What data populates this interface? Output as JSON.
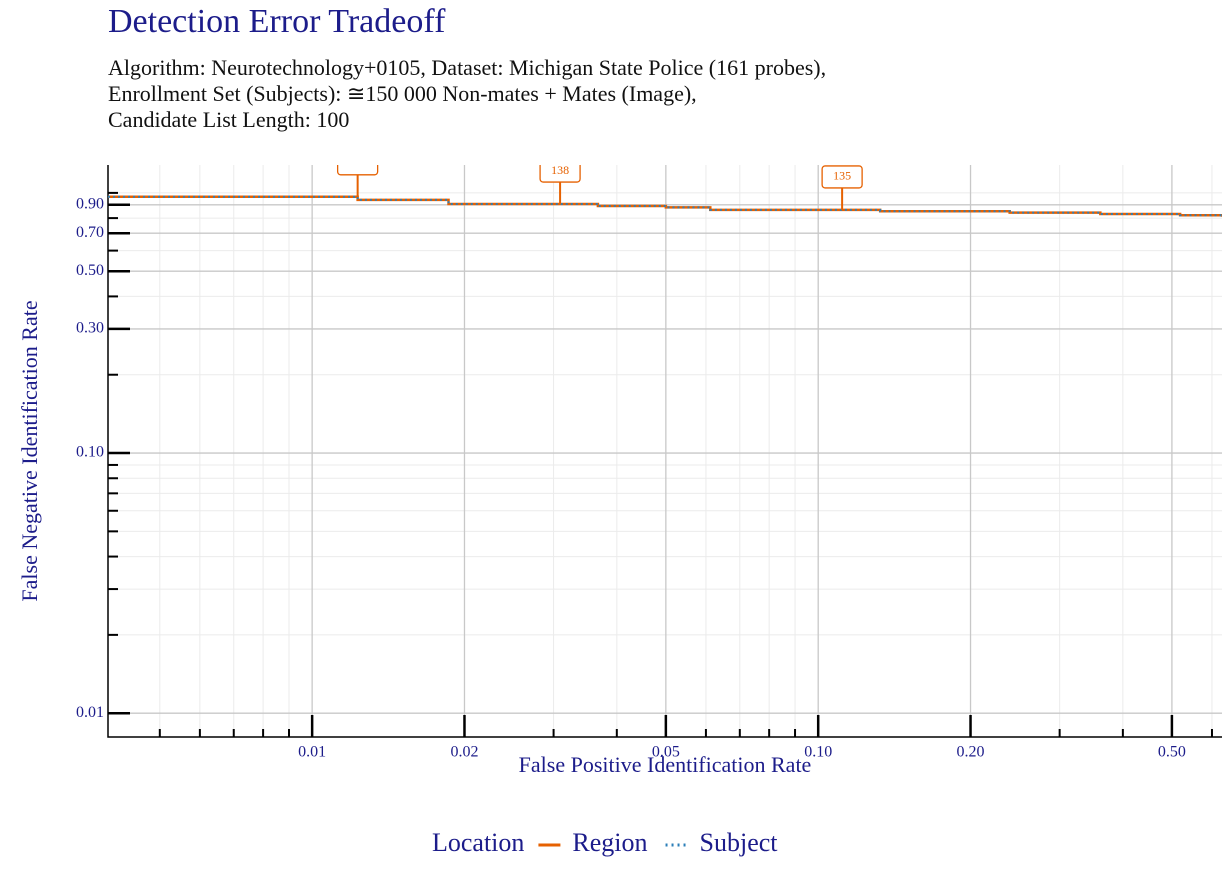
{
  "chart_data": {
    "type": "line",
    "title": "Detection Error Tradeoff",
    "subtitle": [
      "Algorithm: Neurotechnology+0105, Dataset: Michigan State Police (161 probes),",
      "Enrollment Set (Subjects): ≅150 000 Non-mates + Mates (Image),",
      "Candidate List Length: 100"
    ],
    "xlabel": "False Positive Identification Rate",
    "ylabel": "False Negative Identification Rate",
    "xscale": "log",
    "yscale": "log",
    "xlim": [
      0.00395,
      0.628
    ],
    "ylim": [
      0.0081,
      1.28
    ],
    "xticks": [
      0.01,
      0.02,
      0.05,
      {
        "value": 0.1,
        "label": "0.10"
      },
      {
        "value": 0.2,
        "label": "0.20"
      },
      {
        "value": 0.5,
        "label": "0.50"
      }
    ],
    "yticks": [
      0.01,
      {
        "value": 0.1,
        "label": "0.10"
      },
      {
        "value": 0.3,
        "label": "0.30"
      },
      {
        "value": 0.5,
        "label": "0.50"
      },
      {
        "value": 0.7,
        "label": "0.70"
      },
      {
        "value": 0.9,
        "label": "0.90"
      }
    ],
    "xminor_ticks": [
      0.005,
      0.006,
      0.007,
      0.008,
      0.009,
      0.03,
      0.04,
      0.06,
      0.07,
      0.08,
      0.09,
      0.3,
      0.4,
      0.6
    ],
    "yminor_ticks": [
      0.02,
      0.03,
      0.04,
      0.05,
      0.06,
      0.07,
      0.08,
      0.09,
      0.2,
      0.4,
      0.6,
      0.8,
      1.0
    ],
    "grid": true,
    "step": "post",
    "x": [
      0.00395,
      0.0123,
      0.0186,
      0.0367,
      0.05,
      0.0612,
      0.1326,
      0.239,
      0.361,
      0.519,
      0.628
    ],
    "series": [
      {
        "name": "Region",
        "color": "#e66101",
        "style": "solid",
        "values": [
          0.966,
          0.94,
          0.906,
          0.89,
          0.88,
          0.86,
          0.85,
          0.84,
          0.83,
          0.82,
          0.81
        ]
      },
      {
        "name": "Subject",
        "color": "#2c7fb8",
        "style": "dotted",
        "values": [
          0.966,
          0.94,
          0.906,
          0.89,
          0.88,
          0.86,
          0.85,
          0.84,
          0.83,
          0.82,
          0.81
        ]
      }
    ],
    "annotations": [
      {
        "x": 0.0123,
        "y": 0.966
      },
      {
        "x": 0.0309,
        "y": 0.906,
        "label": "138"
      },
      {
        "x": 0.1115,
        "y": 0.86,
        "label": "135"
      }
    ],
    "legend_title": "Location",
    "legend_position": "bottom"
  }
}
